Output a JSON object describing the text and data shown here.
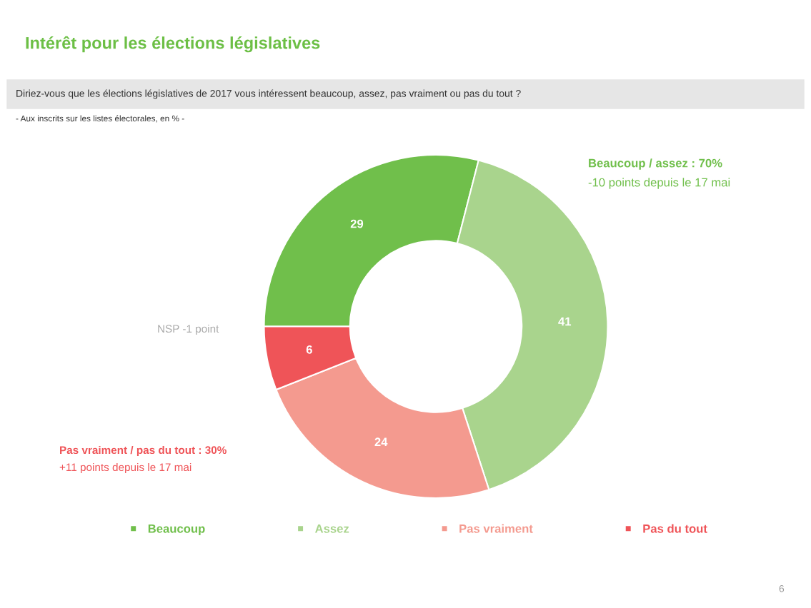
{
  "chart_data": {
    "type": "donut",
    "title": "Intérêt pour les élections législatives",
    "subtitle": "Diriez-vous que les élections législatives de 2017 vous intéressent beaucoup, assez, pas vraiment ou pas du tout ?",
    "categories": [
      "Beaucoup",
      "Assez",
      "Pas vraiment",
      "Pas du tout"
    ],
    "values": [
      29,
      41,
      24,
      6
    ],
    "colors": [
      "#70bf4b",
      "#a9d48d",
      "#f49a8f",
      "#ef5458"
    ],
    "data_labels": true,
    "legend": "bottom",
    "annotations": [
      "- Aux inscrits sur les listes électorales, en % -",
      "Beaucoup / assez : 70%",
      "-10 points depuis le 17 mai",
      "NSP -1 point",
      "Pas vraiment / pas du tout : 30%",
      "+11 points depuis le 17 mai",
      "6"
    ]
  }
}
